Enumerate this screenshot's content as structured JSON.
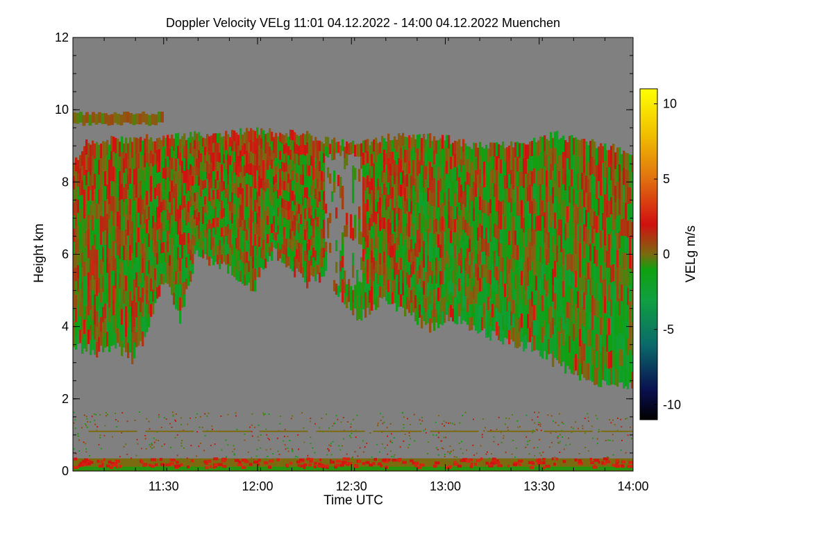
{
  "chart_data": {
    "type": "heatmap",
    "title": "Doppler Velocity VELg   11:01 04.12.2022 - 14:00 04.12.2022 Muenchen",
    "xlabel": "Time UTC",
    "ylabel": "Height km",
    "xlim_minutes_utc": [
      661,
      840
    ],
    "ylim_km": [
      0,
      12
    ],
    "x_ticks": [
      {
        "minute": 690,
        "label": "11:30"
      },
      {
        "minute": 720,
        "label": "12:00"
      },
      {
        "minute": 750,
        "label": "12:30"
      },
      {
        "minute": 780,
        "label": "13:00"
      },
      {
        "minute": 810,
        "label": "13:30"
      },
      {
        "minute": 840,
        "label": "14:00"
      }
    ],
    "y_ticks": [
      {
        "value": 0,
        "label": "0"
      },
      {
        "value": 2,
        "label": "2"
      },
      {
        "value": 4,
        "label": "4"
      },
      {
        "value": 6,
        "label": "6"
      },
      {
        "value": 8,
        "label": "8"
      },
      {
        "value": 10,
        "label": "10"
      },
      {
        "value": 12,
        "label": "12"
      }
    ],
    "colorbar": {
      "label": "VELg m/s",
      "range": [
        -11,
        11
      ],
      "ticks": [
        {
          "value": 10,
          "label": "10"
        },
        {
          "value": 5,
          "label": "5"
        },
        {
          "value": 0,
          "label": "0"
        },
        {
          "value": -5,
          "label": "-5"
        },
        {
          "value": -10,
          "label": "-10"
        }
      ],
      "stops": [
        {
          "value": -11,
          "color": "#000000"
        },
        {
          "value": -9,
          "color": "#0a1050"
        },
        {
          "value": -6,
          "color": "#0a6a6a"
        },
        {
          "value": -3,
          "color": "#10a040"
        },
        {
          "value": -1,
          "color": "#10a010"
        },
        {
          "value": 0,
          "color": "#7a6a10"
        },
        {
          "value": 2,
          "color": "#d01010"
        },
        {
          "value": 5,
          "color": "#e07010"
        },
        {
          "value": 8,
          "color": "#f0c000"
        },
        {
          "value": 11,
          "color": "#ffff00"
        }
      ]
    },
    "no_data_color": "#808080",
    "cloud_layer": {
      "description_velocity_range_m_s": [
        -2,
        2
      ],
      "cloud_top_km": [
        [
          661,
          8.5
        ],
        [
          665,
          9.1
        ],
        [
          680,
          9.2
        ],
        [
          700,
          9.3
        ],
        [
          720,
          9.4
        ],
        [
          735,
          9.3
        ],
        [
          745,
          9.1
        ],
        [
          752,
          9.0
        ],
        [
          760,
          9.2
        ],
        [
          770,
          9.3
        ],
        [
          780,
          9.2
        ],
        [
          790,
          9.0
        ],
        [
          800,
          9.0
        ],
        [
          815,
          9.3
        ],
        [
          825,
          9.1
        ],
        [
          840,
          8.8
        ]
      ],
      "cloud_base_km": [
        [
          661,
          3.5
        ],
        [
          668,
          3.3
        ],
        [
          675,
          3.4
        ],
        [
          680,
          3.1
        ],
        [
          685,
          4.0
        ],
        [
          690,
          5.3
        ],
        [
          695,
          4.2
        ],
        [
          700,
          6.0
        ],
        [
          710,
          5.6
        ],
        [
          718,
          5.0
        ],
        [
          725,
          6.1
        ],
        [
          735,
          5.2
        ],
        [
          742,
          5.4
        ],
        [
          748,
          4.6
        ],
        [
          752,
          4.3
        ],
        [
          760,
          4.7
        ],
        [
          768,
          4.3
        ],
        [
          775,
          4.0
        ],
        [
          782,
          4.3
        ],
        [
          792,
          3.8
        ],
        [
          800,
          3.6
        ],
        [
          808,
          3.4
        ],
        [
          815,
          3.0
        ],
        [
          822,
          2.6
        ],
        [
          830,
          2.4
        ],
        [
          840,
          2.3
        ]
      ],
      "upper_patch_km": {
        "minutes": [
          661,
          690
        ],
        "range": [
          9.6,
          9.9
        ]
      },
      "gap_region_minutes": [
        741,
        753
      ]
    },
    "surface_layer": {
      "height_km": [
        0,
        0.35
      ],
      "dominant_velocity_m_s": 0,
      "embedded_values_m_s": 2,
      "thin_line_height_km": 1.1
    }
  }
}
